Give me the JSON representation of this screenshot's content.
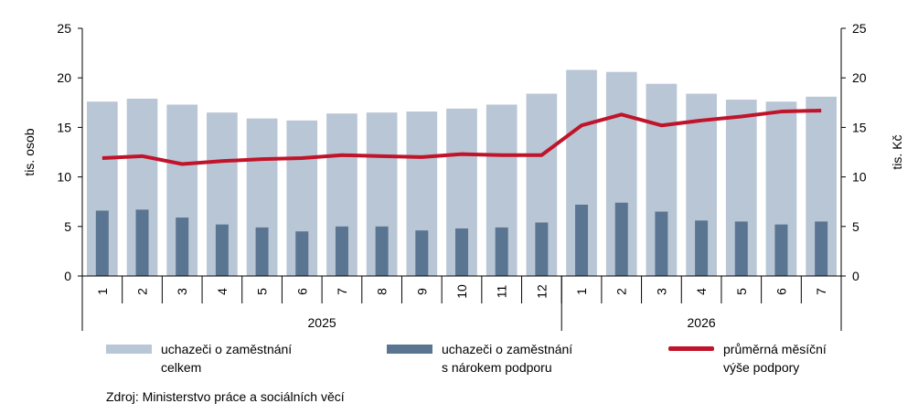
{
  "chart_data": {
    "type": "bar",
    "years": [
      {
        "label": "2025",
        "months": [
          "1",
          "2",
          "3",
          "4",
          "5",
          "6",
          "7",
          "8",
          "9",
          "10",
          "11",
          "12"
        ]
      },
      {
        "label": "2026",
        "months": [
          "1",
          "2",
          "3",
          "4",
          "5",
          "6",
          "7"
        ]
      }
    ],
    "series": [
      {
        "name": "uchazeči o zaměstnání\ncelkem",
        "type": "bar",
        "axis": "left",
        "color": "#b9c6d5",
        "values": [
          17.6,
          17.9,
          17.3,
          16.5,
          15.9,
          15.7,
          16.4,
          16.5,
          16.6,
          16.9,
          17.3,
          18.4,
          20.8,
          20.6,
          19.4,
          18.4,
          17.8,
          17.6,
          18.1
        ]
      },
      {
        "name": "uchazeči o zaměstnání\ns nárokem podporu",
        "type": "bar",
        "axis": "left",
        "color": "#5a7591",
        "values": [
          6.6,
          6.7,
          5.9,
          5.2,
          4.9,
          4.5,
          5.0,
          5.0,
          4.6,
          4.8,
          4.9,
          5.4,
          7.2,
          7.4,
          6.5,
          5.6,
          5.5,
          5.2,
          5.5
        ]
      },
      {
        "name": "průměrná měsíční\nvýše podpory",
        "type": "line",
        "axis": "right",
        "color": "#c0142a",
        "values": [
          11.9,
          12.1,
          11.3,
          11.6,
          11.8,
          11.9,
          12.2,
          12.1,
          12.0,
          12.3,
          12.2,
          12.2,
          15.2,
          16.3,
          15.2,
          15.7,
          16.1,
          16.6,
          16.7
        ]
      }
    ],
    "ylabel_left": "tis. osob",
    "ylabel_right": "tis. Kč",
    "ylim_left": [
      0,
      25
    ],
    "ylim_right": [
      0,
      25
    ],
    "yticks": [
      0,
      5,
      10,
      15,
      20,
      25
    ],
    "grid": false,
    "legend": "bottom"
  },
  "source": "Zdroj: Ministerstvo práce a sociálních věcí"
}
